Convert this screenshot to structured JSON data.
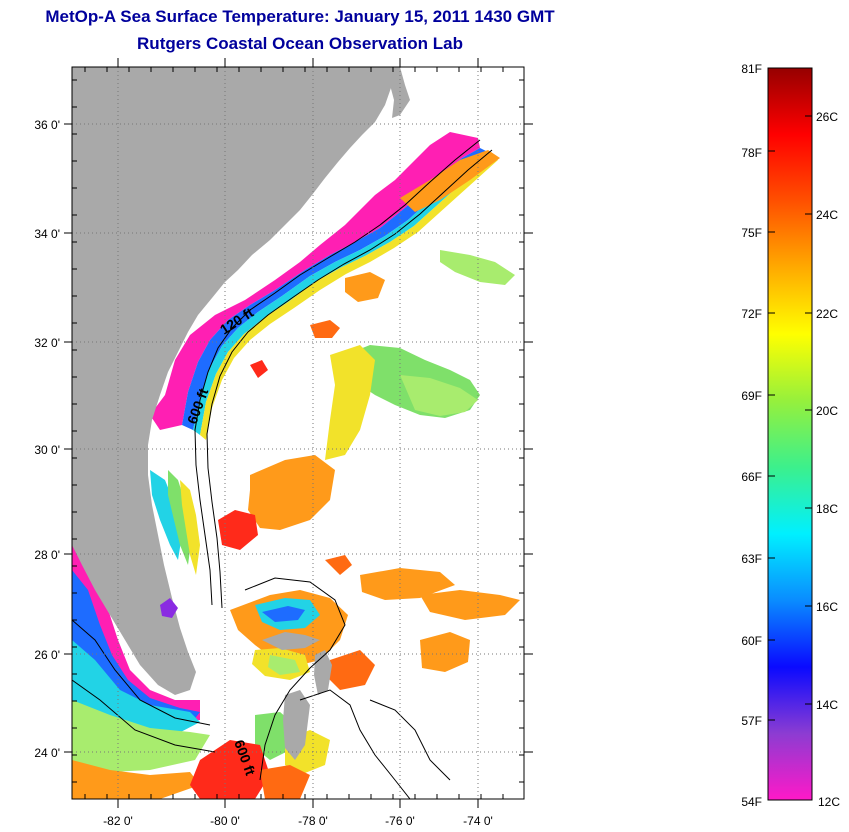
{
  "title": {
    "line1": "MetOp-A Sea Surface Temperature:  January 15, 2011 1430 GMT",
    "line2": "Rutgers Coastal Ocean Observation Lab"
  },
  "map": {
    "lon_labels": [
      "-82 0'",
      "-80 0'",
      "-78 0'",
      "-76 0'",
      "-74 0'"
    ],
    "lat_labels": [
      "36 0'",
      "34 0'",
      "32 0'",
      "30 0'",
      "28 0'",
      "26 0'",
      "24 0'"
    ],
    "contour_labels": [
      "120 ft",
      "600 ft",
      "600 ft"
    ],
    "land_color": "#a9a9a9",
    "colors": {
      "magenta": "#ff1fb3",
      "purple": "#8a2be2",
      "blue": "#1e6cff",
      "cyan": "#22d3e6",
      "green": "#7fe06a",
      "lightgreen": "#a8ec6e",
      "yellow": "#f2e22a",
      "orange": "#ff9a1a",
      "darkorange": "#ff6a12",
      "red": "#ff2a1a"
    }
  },
  "colorbar": {
    "fahrenheit_labels": [
      "81F",
      "78F",
      "75F",
      "72F",
      "69F",
      "66F",
      "63F",
      "60F",
      "57F",
      "54F"
    ],
    "celsius_labels": [
      "26C",
      "24C",
      "22C",
      "20C",
      "18C",
      "16C",
      "14C",
      "12C"
    ],
    "gradient_stops": [
      "#ff19c8",
      "#8c3cd2",
      "#0a0aff",
      "#0a8cff",
      "#00f0ff",
      "#3cf08c",
      "#96f03c",
      "#ffff00",
      "#ffaa00",
      "#ff5000",
      "#ff0000",
      "#960000"
    ]
  }
}
